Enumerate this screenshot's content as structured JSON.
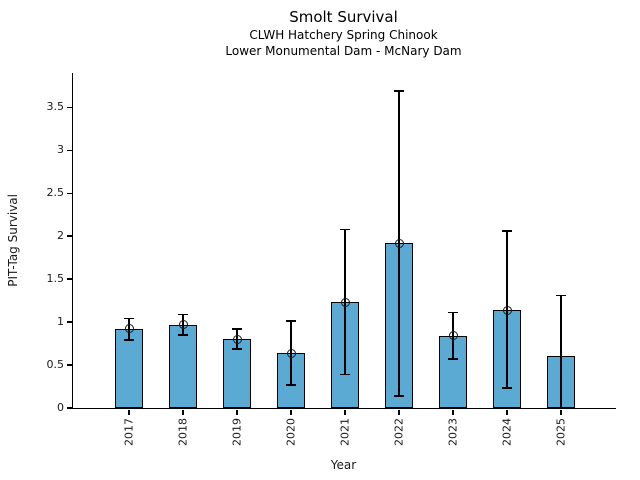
{
  "chart_data": {
    "type": "bar",
    "title": "Smolt Survival",
    "subtitle1": "CLWH Hatchery Spring Chinook",
    "subtitle2": "Lower Monumental Dam - McNary Dam",
    "xlabel": "Year",
    "ylabel": "PIT-Tag Survival",
    "categories": [
      "2017",
      "2018",
      "2019",
      "2020",
      "2021",
      "2022",
      "2023",
      "2024",
      "2025"
    ],
    "values": [
      0.92,
      0.97,
      0.8,
      0.64,
      1.23,
      1.92,
      0.84,
      1.14,
      0.6
    ],
    "error_low": [
      0.79,
      0.85,
      0.69,
      0.27,
      0.39,
      0.14,
      0.57,
      0.23,
      0.0
    ],
    "error_high": [
      1.04,
      1.09,
      0.92,
      1.01,
      2.08,
      3.69,
      1.11,
      2.06,
      1.31
    ],
    "point_markers": [
      true,
      true,
      true,
      true,
      true,
      true,
      true,
      true,
      false
    ],
    "yticks": [
      0,
      0.5,
      1,
      1.5,
      2,
      2.5,
      3,
      3.5
    ],
    "ylim": [
      0,
      3.9
    ],
    "grid": false,
    "legend": null,
    "bar_color": "#5AAAD4",
    "bar_edge_color": "#000000",
    "error_color": "#000000"
  }
}
